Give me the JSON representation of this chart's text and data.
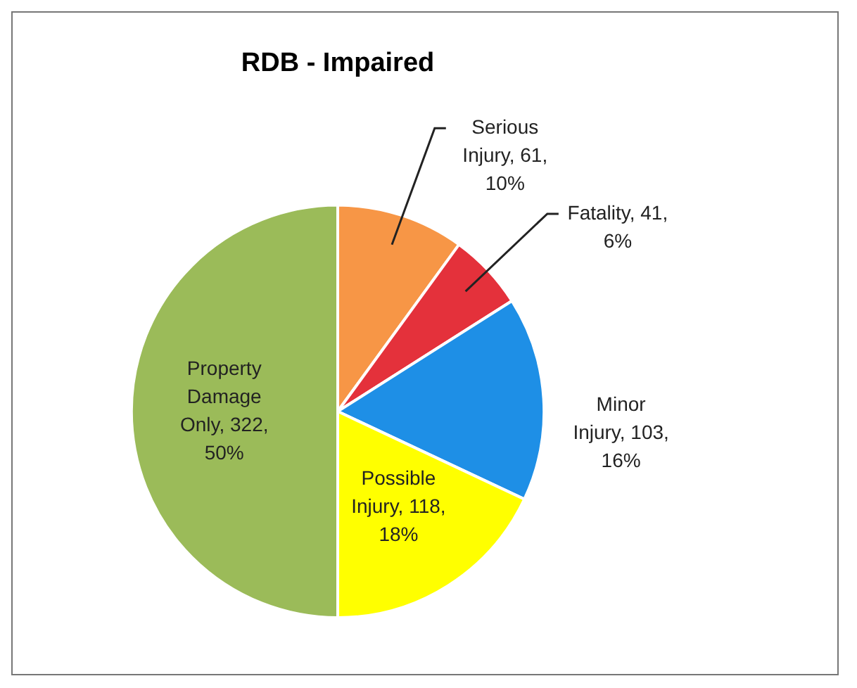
{
  "chart_data": {
    "type": "pie",
    "title": "RDB - Impaired",
    "categories": [
      "Serious Injury",
      "Fatality",
      "Minor Injury",
      "Possible Injury",
      "Property Damage Only"
    ],
    "values": [
      10,
      6,
      16,
      18,
      50
    ],
    "value_labels": [
      "61, 10%",
      "41, 6%",
      "103, 16%",
      "118, 18%",
      "322, 50%"
    ],
    "colors": [
      "#f79646",
      "#e4313b",
      "#1e8fe6",
      "#ffff00",
      "#9bbb59"
    ],
    "legend": false
  }
}
